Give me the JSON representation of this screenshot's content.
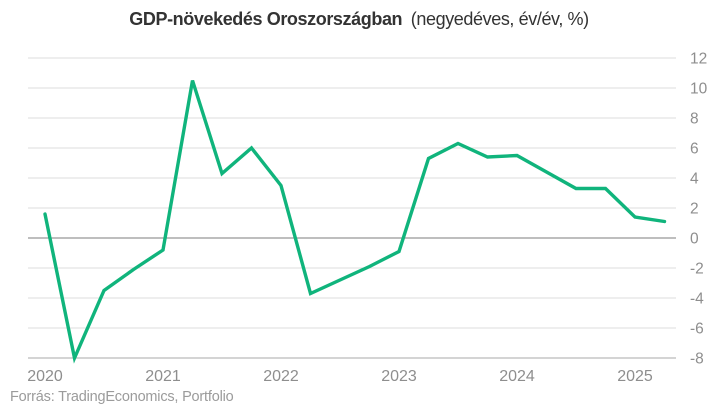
{
  "title": {
    "main": "GDP-növekedés Oroszországban",
    "sub": "(negyedéves, év/év, %)"
  },
  "footer": {
    "source": "Forrás: TradingEconomics, Portfolio"
  },
  "colors": {
    "line": "#10b47c",
    "grid": "#dcdcdc",
    "zero_line": "#7d7d7d",
    "axis_line": "#aaaaaa",
    "tick_label": "#8e8e8e",
    "title_text": "#333333",
    "footer_text": "#9b9b9b",
    "background": "#ffffff"
  },
  "chart_data": {
    "type": "line",
    "title": "GDP-növekedés Oroszországban (negyedéves, év/év, %)",
    "xlabel": "",
    "ylabel": "",
    "x": [
      "2020 Q1",
      "2020 Q2",
      "2020 Q3",
      "2020 Q4",
      "2021 Q1",
      "2021 Q2",
      "2021 Q3",
      "2021 Q4",
      "2022 Q1",
      "2022 Q2",
      "2022 Q3",
      "2022 Q4",
      "2023 Q1",
      "2023 Q2",
      "2023 Q3",
      "2023 Q4",
      "2024 Q1",
      "2024 Q2",
      "2024 Q3",
      "2024 Q4",
      "2025 Q1",
      "2025 Q2"
    ],
    "series": [
      {
        "name": "GDP-növekedés év/év (%)",
        "values": [
          1.6,
          -8.0,
          -3.5,
          -2.1,
          -0.8,
          10.5,
          4.3,
          6.0,
          3.5,
          -3.7,
          -2.8,
          -1.9,
          -0.9,
          5.3,
          6.3,
          5.4,
          5.5,
          4.4,
          3.3,
          3.3,
          1.4,
          1.1
        ]
      }
    ],
    "x_tick_labels": [
      "2020",
      "2021",
      "2022",
      "2023",
      "2024",
      "2025"
    ],
    "x_tick_indices": [
      0,
      4,
      8,
      12,
      16,
      20
    ],
    "y_ticks": [
      12,
      10,
      8,
      6,
      4,
      2,
      0,
      -2,
      -4,
      -6,
      -8
    ],
    "ylim": [
      -8,
      12
    ],
    "grid": true,
    "legend": false
  }
}
